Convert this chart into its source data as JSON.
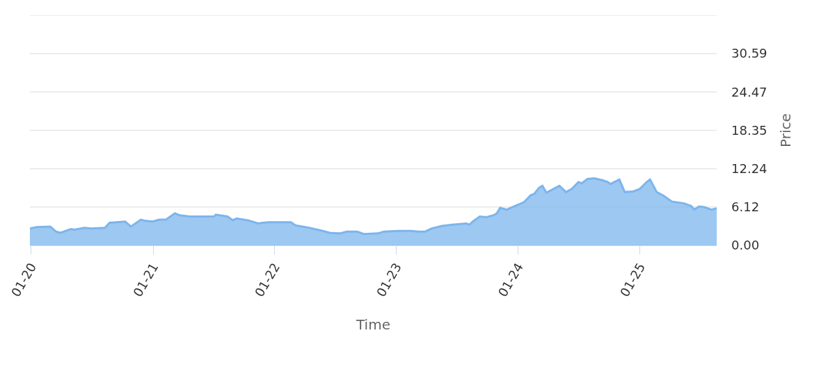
{
  "chart_data": {
    "type": "area",
    "xlabel": "Time",
    "ylabel": "Price",
    "x": [
      "2019-12-28",
      "2020-01-17",
      "2020-02-27",
      "2020-03-15",
      "2020-03-29",
      "2020-04-29",
      "2020-05-09",
      "2020-06-09",
      "2020-06-29",
      "2020-08-09",
      "2020-08-23",
      "2020-10-09",
      "2020-10-26",
      "2020-11-25",
      "2020-12-10",
      "2020-12-30",
      "2021-01-19",
      "2021-02-08",
      "2021-03-07",
      "2021-03-22",
      "2021-04-21",
      "2021-07-02",
      "2021-07-08",
      "2021-08-12",
      "2021-08-28",
      "2021-09-08",
      "2021-10-12",
      "2021-11-12",
      "2021-11-26",
      "2021-12-13",
      "2022-01-02",
      "2022-02-18",
      "2022-03-04",
      "2022-04-14",
      "2022-05-25",
      "2022-06-15",
      "2022-07-15",
      "2022-08-05",
      "2022-09-05",
      "2022-09-25",
      "2022-11-05",
      "2022-11-25",
      "2023-01-05",
      "2023-02-15",
      "2023-03-08",
      "2023-03-28",
      "2023-04-17",
      "2023-05-18",
      "2023-06-18",
      "2023-07-29",
      "2023-08-08",
      "2023-08-18",
      "2023-09-08",
      "2023-09-28",
      "2023-10-19",
      "2023-10-29",
      "2023-11-08",
      "2023-11-28",
      "2023-12-19",
      "2024-01-19",
      "2024-02-08",
      "2024-02-18",
      "2024-03-04",
      "2024-03-14",
      "2024-03-26",
      "2024-04-20",
      "2024-05-04",
      "2024-05-24",
      "2024-06-10",
      "2024-06-30",
      "2024-07-10",
      "2024-07-27",
      "2024-08-16",
      "2024-09-10",
      "2024-09-26",
      "2024-10-04",
      "2024-10-31",
      "2024-11-16",
      "2024-12-11",
      "2024-12-31",
      "2025-01-21",
      "2025-01-31",
      "2025-02-20",
      "2025-03-13",
      "2025-04-06",
      "2025-05-13",
      "2025-06-03",
      "2025-06-13",
      "2025-06-27",
      "2025-07-13",
      "2025-08-03",
      "2025-08-19"
    ],
    "series": [
      {
        "color": "#7cb5ec",
        "values": [
          2.7,
          2.9,
          3.0,
          2.2,
          2.0,
          2.6,
          2.5,
          2.8,
          2.7,
          2.8,
          3.6,
          3.8,
          3.0,
          4.1,
          3.9,
          3.8,
          4.1,
          4.1,
          5.1,
          4.8,
          4.6,
          4.6,
          4.9,
          4.6,
          4.0,
          4.3,
          4.0,
          3.5,
          3.6,
          3.7,
          3.7,
          3.7,
          3.2,
          2.8,
          2.3,
          2.0,
          1.9,
          2.2,
          2.2,
          1.8,
          1.9,
          2.2,
          2.3,
          2.3,
          2.2,
          2.2,
          2.7,
          3.1,
          3.3,
          3.5,
          3.3,
          3.8,
          4.6,
          4.5,
          4.8,
          5.1,
          6.0,
          5.7,
          6.2,
          6.9,
          8.0,
          8.2,
          9.2,
          9.5,
          8.4,
          9.1,
          9.5,
          8.5,
          9.0,
          10.1,
          9.9,
          10.6,
          10.7,
          10.4,
          10.1,
          9.8,
          10.5,
          8.5,
          8.6,
          9.0,
          10.1,
          10.5,
          8.5,
          7.9,
          7.0,
          6.7,
          6.3,
          5.7,
          6.2,
          6.1,
          5.7,
          5.9
        ]
      }
    ],
    "xlim": [
      "2019-12-28",
      "2025-08-19"
    ],
    "xticks": [
      {
        "value": "2020-01-01",
        "label": "01-20"
      },
      {
        "value": "2021-01-01",
        "label": "01-21"
      },
      {
        "value": "2022-01-01",
        "label": "01-22"
      },
      {
        "value": "2023-01-01",
        "label": "01-23"
      },
      {
        "value": "2024-01-01",
        "label": "01-24"
      },
      {
        "value": "2025-01-01",
        "label": "01-25"
      }
    ],
    "ylim": [
      0,
      36.71
    ],
    "yticks": [
      {
        "value": 0,
        "label": "0.00"
      },
      6.12,
      12.24,
      18.35,
      24.47,
      30.59,
      {
        "value": 36.71,
        "label": null
      }
    ],
    "grid": "y"
  }
}
